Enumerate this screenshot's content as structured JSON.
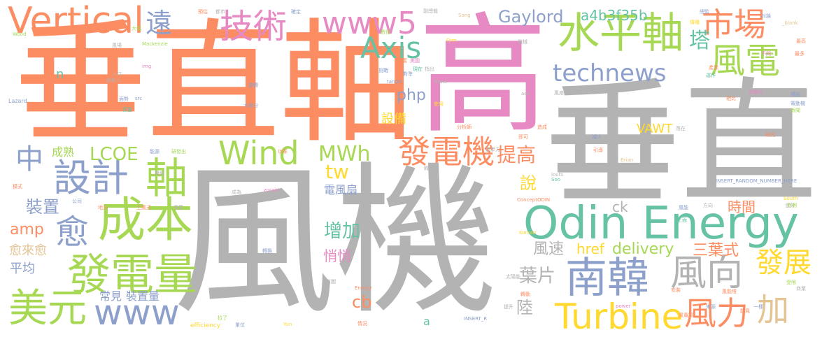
{
  "words": [
    {
      "text": "風機",
      "color": "#b3b3b3"
    },
    {
      "text": "垂直軸",
      "color": "#fc8d62"
    },
    {
      "text": "高",
      "color": "#e78ac3"
    },
    {
      "text": "垂直",
      "color": "#b3b3b3"
    },
    {
      "text": "Odin Energy",
      "color": "#66c2a5"
    },
    {
      "text": "水平軸",
      "color": "#a6d854"
    },
    {
      "text": "市場",
      "color": "#fc8d62"
    },
    {
      "text": "風電",
      "color": "#a6d854"
    },
    {
      "text": "technews",
      "color": "#8da0cb"
    },
    {
      "text": "南韓",
      "color": "#8da0cb"
    },
    {
      "text": "風向",
      "color": "#b3b3b3"
    },
    {
      "text": "Vertical",
      "color": "#fc8d62"
    },
    {
      "text": "技術",
      "color": "#e78ac3"
    },
    {
      "text": "www5",
      "color": "#e78ac3"
    },
    {
      "text": "Axis",
      "color": "#66c2a5"
    },
    {
      "text": "發電機",
      "color": "#fc8d62"
    },
    {
      "text": "Wind",
      "color": "#a6d854"
    },
    {
      "text": "成本",
      "color": "#a6d854"
    },
    {
      "text": "發電量",
      "color": "#a6d854"
    },
    {
      "text": "美元",
      "color": "#a6d854"
    },
    {
      "text": "www",
      "color": "#8da0cb"
    },
    {
      "text": "設計",
      "color": "#8da0cb"
    },
    {
      "text": "軸",
      "color": "#a6d854"
    },
    {
      "text": "中",
      "color": "#8da0cb"
    },
    {
      "text": "愈",
      "color": "#8da0cb"
    },
    {
      "text": "Turbine",
      "color": "#ffd92f"
    },
    {
      "text": "風力",
      "color": "#fc8d62"
    },
    {
      "text": "加",
      "color": "#e5c494"
    },
    {
      "text": "發展",
      "color": "#ffd92f"
    },
    {
      "text": "遠",
      "color": "#8da0cb"
    },
    {
      "text": "塔",
      "color": "#66c2a5"
    },
    {
      "text": "Gaylord",
      "color": "#8da0cb"
    },
    {
      "text": "a4b3f35b",
      "color": "#66c2a5"
    },
    {
      "text": "MWh",
      "color": "#a6d854"
    },
    {
      "text": "LCOE",
      "color": "#a6d854"
    },
    {
      "text": "tw",
      "color": "#ffd92f"
    },
    {
      "text": "提高",
      "color": "#fc8d62"
    },
    {
      "text": "php",
      "color": "#8da0cb"
    },
    {
      "text": "設備",
      "color": "#ffd92f"
    },
    {
      "text": "VAWT",
      "color": "#ffd92f"
    },
    {
      "text": "時間",
      "color": "#fc8d62"
    },
    {
      "text": "delivery",
      "color": "#a6d854"
    },
    {
      "text": "三葉式",
      "color": "#fc8d62"
    },
    {
      "text": "風速",
      "color": "#b3b3b3"
    },
    {
      "text": "href",
      "color": "#ffd92f"
    },
    {
      "text": "增加",
      "color": "#66c2a5"
    },
    {
      "text": "悄悄",
      "color": "#e78ac3"
    },
    {
      "text": "葉片",
      "color": "#b3b3b3"
    },
    {
      "text": "cb",
      "color": "#fc8d62"
    },
    {
      "text": "ck",
      "color": "#b3b3b3"
    },
    {
      "text": "說",
      "color": "#ffd92f"
    },
    {
      "text": "電風扇",
      "color": "#8da0cb"
    },
    {
      "text": "陸",
      "color": "#b3b3b3"
    },
    {
      "text": "裝置",
      "color": "#8da0cb"
    },
    {
      "text": "amp",
      "color": "#fc8d62"
    },
    {
      "text": "愈來愈",
      "color": "#e5c494"
    },
    {
      "text": "平均",
      "color": "#8da0cb"
    },
    {
      "text": "常見",
      "color": "#8da0cb"
    },
    {
      "text": "裝置量",
      "color": "#8da0cb"
    },
    {
      "text": "成熟",
      "color": "#a6d854"
    },
    {
      "text": "n",
      "color": "#66c2a5"
    },
    {
      "text": "a",
      "color": "#66c2a5"
    },
    {
      "text": "Wood",
      "color": "#a6d854"
    },
    {
      "text": "Mackenzie",
      "color": "#a6d854"
    },
    {
      "text": "Lazard",
      "color": "#8da0cb"
    },
    {
      "text": "Song",
      "color": "#e5c494"
    },
    {
      "text": "Firm",
      "color": "#ffd92f"
    },
    {
      "text": "target",
      "color": "#8da0cb"
    },
    {
      "text": "Tower",
      "color": "#b3b3b3"
    },
    {
      "text": "ConceptODIN",
      "color": "#fc8d62"
    },
    {
      "text": "Brian",
      "color": "#e5c494"
    },
    {
      "text": "South",
      "color": "#ffd92f"
    },
    {
      "text": "Korean",
      "color": "#ffd92f"
    },
    {
      "text": "power",
      "color": "#e78ac3"
    },
    {
      "text": "efficiency",
      "color": "#ffd92f"
    },
    {
      "text": "Yun",
      "color": "#ffd92f"
    },
    {
      "text": "Energy",
      "color": "#fc8d62"
    },
    {
      "text": "_blank",
      "color": "#e5c494"
    },
    {
      "text": "INSERT_RANDOM_NUMBER_HERE",
      "color": "#8da0cb"
    },
    {
      "text": "INSERT_R",
      "color": "#8da0cb"
    },
    {
      "text": "src",
      "color": "#8da0cb"
    },
    {
      "text": "img",
      "color": "#e78ac3"
    },
    {
      "text": "zoraid",
      "color": "#e78ac3"
    },
    {
      "text": "louts",
      "color": "#b3b3b3"
    },
    {
      "text": "Soo",
      "color": "#66c2a5"
    },
    {
      "text": "aov",
      "color": "#b3b3b3"
    },
    {
      "text": "大幅",
      "color": "#a6d854"
    },
    {
      "text": "風場",
      "color": "#b3b3b3"
    },
    {
      "text": "入口",
      "color": "#b3b3b3"
    },
    {
      "text": "創新人",
      "color": "#b3b3b3"
    },
    {
      "text": "旋轉",
      "color": "#8da0cb"
    },
    {
      "text": "面對",
      "color": "#8da0cb"
    },
    {
      "text": "大部分",
      "color": "#8da0cb"
    },
    {
      "text": "轉向",
      "color": "#b3b3b3"
    },
    {
      "text": "容量",
      "color": "#66c2a5"
    },
    {
      "text": "研發出",
      "color": "#a6d854"
    },
    {
      "text": "功率",
      "color": "#fc8d62"
    },
    {
      "text": "能源",
      "color": "#8da0cb"
    },
    {
      "text": "機組",
      "color": "#b3b3b3"
    },
    {
      "text": "模式",
      "color": "#fc8d62"
    },
    {
      "text": "公司",
      "color": "#8da0cb"
    },
    {
      "text": "地方",
      "color": "#fc8d62"
    },
    {
      "text": "土風式",
      "color": "#fc8d62"
    },
    {
      "text": "需要",
      "color": "#b3b3b3"
    },
    {
      "text": "國外",
      "color": "#b3b3b3"
    },
    {
      "text": "轉換",
      "color": "#8da0cb"
    },
    {
      "text": "成為",
      "color": "#b3b3b3"
    },
    {
      "text": "首圖",
      "color": "#b3b3b3"
    },
    {
      "text": "拉了",
      "color": "#a6d854"
    },
    {
      "text": "單位",
      "color": "#8da0cb"
    },
    {
      "text": "情況",
      "color": "#fc8d62"
    },
    {
      "text": "中央",
      "color": "#fc8d62"
    },
    {
      "text": "挑戰",
      "color": "#8da0cb"
    },
    {
      "text": "美國",
      "color": "#e78ac3"
    },
    {
      "text": "數倍",
      "color": "#a6d854"
    },
    {
      "text": "位置",
      "color": "#fc8d62"
    },
    {
      "text": "對準",
      "color": "#8da0cb"
    },
    {
      "text": "現在",
      "color": "#66c2a5"
    },
    {
      "text": "指出",
      "color": "#b3b3b3"
    },
    {
      "text": "使用",
      "color": "#ffd92f"
    },
    {
      "text": "分析師",
      "color": "#fc8d62"
    },
    {
      "text": "能學力",
      "color": "#b3b3b3"
    },
    {
      "text": "造成",
      "color": "#fc8d62"
    },
    {
      "text": "即可",
      "color": "#fc8d62"
    },
    {
      "text": "減少",
      "color": "#8da0cb"
    },
    {
      "text": "引導",
      "color": "#fc8d62"
    },
    {
      "text": "風扇",
      "color": "#b3b3b3"
    },
    {
      "text": "產業",
      "color": "#fc8d62"
    },
    {
      "text": "運作",
      "color": "#66c2a5"
    },
    {
      "text": "速度",
      "color": "#b3b3b3"
    },
    {
      "text": "相比",
      "color": "#fc8d62"
    },
    {
      "text": "落在",
      "color": "#b3b3b3"
    },
    {
      "text": "新型",
      "color": "#b3b3b3"
    },
    {
      "text": "商業化",
      "color": "#e78ac3"
    },
    {
      "text": "構組",
      "color": "#8da0cb"
    },
    {
      "text": "新聞",
      "color": "#a6d854"
    },
    {
      "text": "研究",
      "color": "#fc8d62"
    },
    {
      "text": "最多",
      "color": "#fc8d62"
    },
    {
      "text": "電動機",
      "color": "#8da0cb"
    },
    {
      "text": "外側",
      "color": "#a6d854"
    },
    {
      "text": "受限",
      "color": "#a6d854"
    },
    {
      "text": "商業",
      "color": "#b3b3b3"
    },
    {
      "text": "安裝",
      "color": "#fc8d62"
    },
    {
      "text": "一樣",
      "color": "#8da0cb"
    },
    {
      "text": "風能塔",
      "color": "#fc8d62"
    },
    {
      "text": "來源",
      "color": "#8da0cb"
    },
    {
      "text": "能見",
      "color": "#fc8d62"
    },
    {
      "text": "風能",
      "color": "#8da0cb"
    },
    {
      "text": "方向",
      "color": "#b3b3b3"
    },
    {
      "text": "上面",
      "color": "#66c2a5"
    },
    {
      "text": "風電場",
      "color": "#fc8d62"
    },
    {
      "text": "預估",
      "color": "#fc8d62"
    },
    {
      "text": "都市",
      "color": "#b3b3b3"
    },
    {
      "text": "確定",
      "color": "#8da0cb"
    },
    {
      "text": "副總裁",
      "color": "#b3b3b3"
    },
    {
      "text": "總監",
      "color": "#8da0cb"
    },
    {
      "text": "傳播",
      "color": "#ffd92f"
    },
    {
      "text": "討論",
      "color": "#8da0cb"
    },
    {
      "text": "最高",
      "color": "#fc8d62"
    },
    {
      "text": "機械",
      "color": "#b3b3b3"
    },
    {
      "text": "不同",
      "color": "#e78ac3"
    },
    {
      "text": "太陽能",
      "color": "#b3b3b3"
    },
    {
      "text": "轉動",
      "color": "#fc8d62"
    },
    {
      "text": "核能",
      "color": "#b3b3b3"
    },
    {
      "text": "提升",
      "color": "#b3b3b3"
    }
  ]
}
